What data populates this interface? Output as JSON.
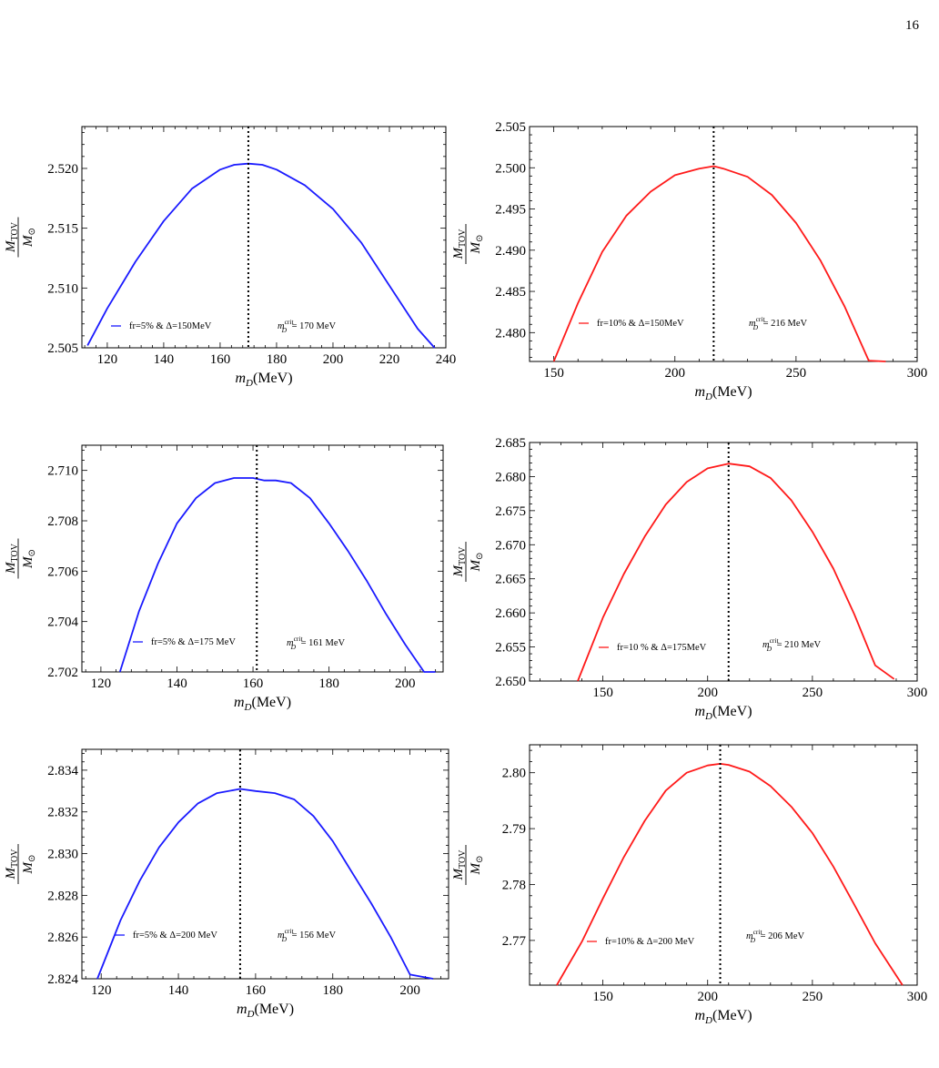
{
  "page_number": "16",
  "chart_data": [
    {
      "type": "line",
      "xlabel_var": "m",
      "xlabel_sub": "D",
      "xlabel_unit": "(MeV)",
      "ylabel_num": "M",
      "ylabel_num_sub": "TOV",
      "ylabel_den": "M",
      "ylabel_den_sub": "⊙",
      "xlim": [
        111,
        240
      ],
      "ylim": [
        2.505,
        2.5235
      ],
      "xticks": [
        120,
        140,
        160,
        180,
        200,
        220,
        240
      ],
      "yticks": [
        2.505,
        2.51,
        2.515,
        2.52
      ],
      "ytick_labels": [
        "2.505",
        "2.510",
        "2.515",
        "2.520"
      ],
      "color": "#1a1aff",
      "series": [
        {
          "name": "fr=5% & Δ=150MeV",
          "x": [
            113,
            120,
            130,
            140,
            150,
            160,
            165,
            170,
            175,
            180,
            190,
            200,
            210,
            220,
            230,
            236
          ],
          "y": [
            2.5052,
            2.5083,
            2.5122,
            2.5156,
            2.5183,
            2.5199,
            2.5203,
            2.5204,
            2.5203,
            2.5199,
            2.5186,
            2.5166,
            2.5138,
            2.5102,
            2.5066,
            2.5045
          ]
        }
      ],
      "crit_x": 170,
      "annotation": {
        "m": "m",
        "sup": "crit",
        "sub": "D",
        "value": " = 170 MeV"
      }
    },
    {
      "type": "line",
      "xlabel_var": "m",
      "xlabel_sub": "D",
      "xlabel_unit": "(MeV)",
      "ylabel_num": "M",
      "ylabel_num_sub": "TOV",
      "ylabel_den": "M",
      "ylabel_den_sub": "⊙",
      "xlim": [
        140,
        300
      ],
      "ylim": [
        2.4765,
        2.505
      ],
      "xticks": [
        150,
        200,
        250,
        300
      ],
      "yticks": [
        2.48,
        2.485,
        2.49,
        2.495,
        2.5,
        2.505
      ],
      "ytick_labels": [
        "2.480",
        "2.485",
        "2.490",
        "2.495",
        "2.500",
        "2.505"
      ],
      "color": "#ff1a1a",
      "series": [
        {
          "name": "fr=10% & Δ=150MeV",
          "x": [
            150,
            160,
            170,
            180,
            190,
            200,
            210,
            216,
            220,
            230,
            240,
            250,
            260,
            270,
            280,
            287
          ],
          "y": [
            2.4763,
            2.4836,
            2.4898,
            2.4942,
            2.4971,
            2.4991,
            2.4999,
            2.5002,
            2.4999,
            2.4989,
            2.4967,
            2.4933,
            2.4888,
            2.4832,
            2.4766,
            2.4712
          ]
        }
      ],
      "crit_x": 216,
      "annotation": {
        "m": "m",
        "sup": "crit",
        "sub": "D",
        "value": " = 216 MeV"
      }
    },
    {
      "type": "line",
      "xlabel_var": "m",
      "xlabel_sub": "D",
      "xlabel_unit": "(MeV)",
      "ylabel_num": "M",
      "ylabel_num_sub": "TOV",
      "ylabel_den": "M",
      "ylabel_den_sub": "⊙",
      "xlim": [
        115,
        210
      ],
      "ylim": [
        2.702,
        2.711
      ],
      "xticks": [
        120,
        140,
        160,
        180,
        200
      ],
      "yticks": [
        2.702,
        2.704,
        2.706,
        2.708,
        2.71
      ],
      "ytick_labels": [
        "2.702",
        "2.704",
        "2.706",
        "2.708",
        "2.710"
      ],
      "color": "#1a1aff",
      "series": [
        {
          "name": "fr=5% & Δ=175 MeV",
          "x": [
            125,
            130,
            135,
            140,
            145,
            150,
            155,
            160,
            163,
            166,
            170,
            175,
            180,
            185,
            190,
            195,
            200,
            205,
            208
          ],
          "y": [
            2.702,
            2.7044,
            2.7063,
            2.7079,
            2.7089,
            2.7095,
            2.7097,
            2.7097,
            2.7096,
            2.7096,
            2.7095,
            2.7089,
            2.7079,
            2.7068,
            2.7056,
            2.7043,
            2.7031,
            2.7015,
            2.702
          ]
        }
      ],
      "crit_x": 161,
      "annotation": {
        "m": "m",
        "sup": "crit",
        "sub": "D",
        "value": " = 161 MeV"
      }
    },
    {
      "type": "line",
      "xlabel_var": "m",
      "xlabel_sub": "D",
      "xlabel_unit": "(MeV)",
      "ylabel_num": "M",
      "ylabel_num_sub": "TOV",
      "ylabel_den": "M",
      "ylabel_den_sub": "⊙",
      "xlim": [
        115,
        300
      ],
      "ylim": [
        2.65,
        2.685
      ],
      "xticks": [
        150,
        200,
        250,
        300
      ],
      "yticks": [
        2.65,
        2.655,
        2.66,
        2.665,
        2.67,
        2.675,
        2.68,
        2.685
      ],
      "ytick_labels": [
        "2.650",
        "2.655",
        "2.660",
        "2.665",
        "2.670",
        "2.675",
        "2.680",
        "2.685"
      ],
      "color": "#ff1a1a",
      "series": [
        {
          "name": "fr=10 % & Δ=175MeV",
          "x": [
            138,
            150,
            160,
            170,
            180,
            190,
            200,
            210,
            220,
            230,
            240,
            250,
            260,
            270,
            280,
            289
          ],
          "y": [
            2.65,
            2.6593,
            2.6657,
            2.6712,
            2.6759,
            2.6792,
            2.6812,
            2.6819,
            2.6815,
            2.6798,
            2.6765,
            2.6719,
            2.6665,
            2.6598,
            2.6523,
            2.6503
          ]
        }
      ],
      "crit_x": 210,
      "annotation": {
        "m": "m",
        "sup": "crit",
        "sub": "D",
        "value": " = 210 MeV"
      }
    },
    {
      "type": "line",
      "xlabel_var": "m",
      "xlabel_sub": "D",
      "xlabel_unit": "(MeV)",
      "ylabel_num": "M",
      "ylabel_num_sub": "TOV",
      "ylabel_den": "M",
      "ylabel_den_sub": "⊙",
      "xlim": [
        115,
        210
      ],
      "ylim": [
        2.824,
        2.835
      ],
      "xticks": [
        120,
        140,
        160,
        180,
        200
      ],
      "yticks": [
        2.824,
        2.826,
        2.828,
        2.83,
        2.832,
        2.834
      ],
      "ytick_labels": [
        "2.824",
        "2.826",
        "2.828",
        "2.830",
        "2.832",
        "2.834"
      ],
      "color": "#1a1aff",
      "series": [
        {
          "name": "fr=5% & Δ=200 MeV",
          "x": [
            119,
            125,
            130,
            135,
            140,
            145,
            150,
            156,
            160,
            165,
            170,
            175,
            180,
            185,
            190,
            195,
            200,
            206
          ],
          "y": [
            2.824,
            2.8268,
            2.8287,
            2.8303,
            2.8315,
            2.8324,
            2.8329,
            2.8331,
            2.833,
            2.8329,
            2.8326,
            2.8318,
            2.8306,
            2.8291,
            2.8276,
            2.826,
            2.8242,
            2.8223
          ]
        }
      ],
      "crit_x": 156,
      "annotation": {
        "m": "m",
        "sup": "crit",
        "sub": "D",
        "value": " = 156 MeV"
      }
    },
    {
      "type": "line",
      "xlabel_var": "m",
      "xlabel_sub": "D",
      "xlabel_unit": "(MeV)",
      "ylabel_num": "M",
      "ylabel_num_sub": "TOV",
      "ylabel_den": "M",
      "ylabel_den_sub": "⊙",
      "xlim": [
        115,
        300
      ],
      "ylim": [
        2.762,
        2.805
      ],
      "xticks": [
        150,
        200,
        250,
        300
      ],
      "yticks": [
        2.77,
        2.78,
        2.79,
        2.8
      ],
      "ytick_labels": [
        "2.77",
        "2.78",
        "2.79",
        "2.80"
      ],
      "color": "#ff1a1a",
      "series": [
        {
          "name": "fr=10% & Δ=200 MeV",
          "x": [
            128,
            140,
            150,
            160,
            170,
            180,
            190,
            200,
            206,
            210,
            220,
            230,
            240,
            250,
            260,
            270,
            280,
            293
          ],
          "y": [
            2.7618,
            2.7698,
            2.7775,
            2.7849,
            2.7914,
            2.7968,
            2.8,
            2.8013,
            2.8016,
            2.8014,
            2.8002,
            2.7976,
            2.7939,
            2.7892,
            2.7832,
            2.7764,
            2.7695,
            2.7617
          ]
        }
      ],
      "crit_x": 206,
      "annotation": {
        "m": "m",
        "sup": "crit",
        "sub": "D",
        "value": " = 206 MeV"
      }
    }
  ]
}
